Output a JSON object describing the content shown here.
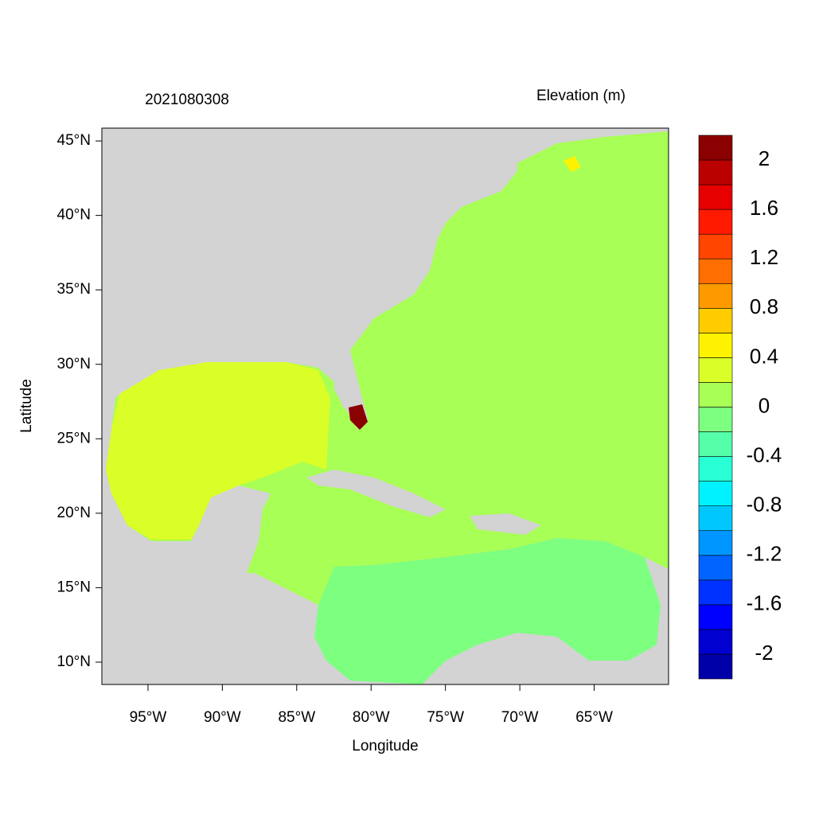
{
  "chart_data": {
    "type": "filled-contour-map",
    "title": "2021080308",
    "colorbar_title": "Elevation (m)",
    "x_label": "Longitude",
    "y_label": "Latitude",
    "xlim": [
      -98.1,
      -60.0
    ],
    "ylim": [
      8.5,
      45.86
    ],
    "xticks": [
      {
        "value": -95,
        "label": "95°W"
      },
      {
        "value": -90,
        "label": "90°W"
      },
      {
        "value": -85,
        "label": "85°W"
      },
      {
        "value": -80,
        "label": "80°W"
      },
      {
        "value": -75,
        "label": "75°W"
      },
      {
        "value": -70,
        "label": "70°W"
      },
      {
        "value": -65,
        "label": "65°W"
      }
    ],
    "yticks": [
      {
        "value": 10,
        "label": "10°N"
      },
      {
        "value": 15,
        "label": "15°N"
      },
      {
        "value": 20,
        "label": "20°N"
      },
      {
        "value": 25,
        "label": "25°N"
      },
      {
        "value": 30,
        "label": "30°N"
      },
      {
        "value": 35,
        "label": "35°N"
      },
      {
        "value": 40,
        "label": "40°N"
      },
      {
        "value": 45,
        "label": "45°N"
      }
    ],
    "colorbar": {
      "lim": [
        -2.2,
        2.2
      ],
      "ticks": [
        -2,
        -1.6,
        -1.2,
        -0.8,
        -0.4,
        0,
        0.4,
        0.8,
        1.2,
        1.6,
        2
      ],
      "colors": [
        "#0000a8",
        "#0000d0",
        "#0000ff",
        "#0032ff",
        "#0064ff",
        "#0096ff",
        "#00c8ff",
        "#00f2ff",
        "#28ffd4",
        "#55ffaa",
        "#7dff80",
        "#a8ff55",
        "#daff28",
        "#fff200",
        "#ffcc00",
        "#ff9900",
        "#ff6e00",
        "#ff4500",
        "#ff1a00",
        "#e60000",
        "#bb0000",
        "#8b0000"
      ]
    }
  }
}
